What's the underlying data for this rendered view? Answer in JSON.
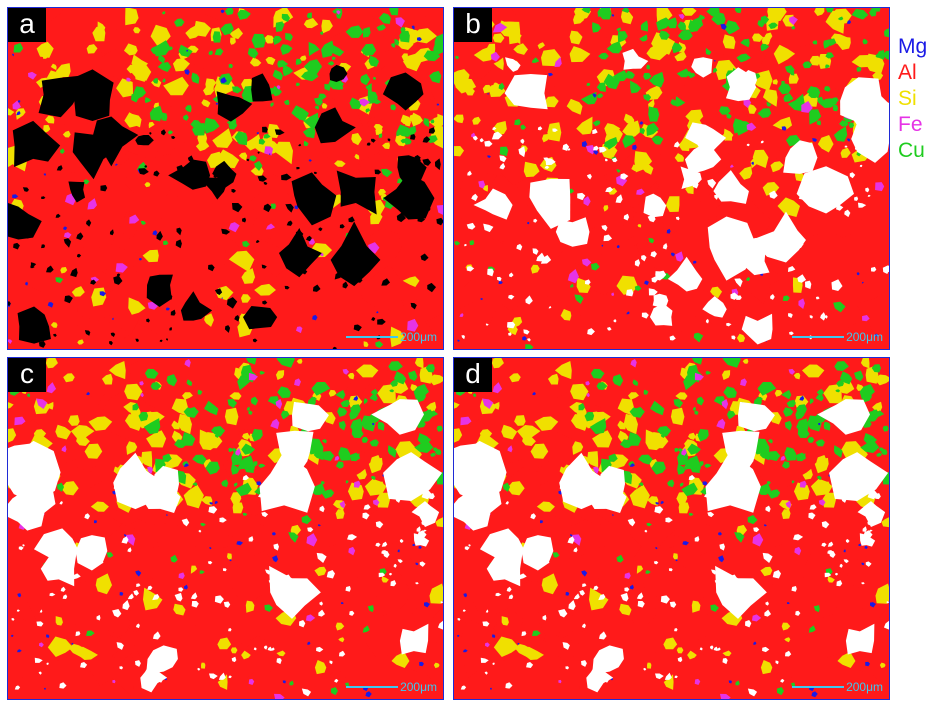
{
  "panels": [
    {
      "id": "a",
      "label": "a",
      "void_color": "#000000"
    },
    {
      "id": "b",
      "label": "b",
      "void_color": "#ffffff"
    },
    {
      "id": "c",
      "label": "c",
      "void_color": "#ffffff"
    },
    {
      "id": "d",
      "label": "d",
      "void_color": "#ffffff"
    }
  ],
  "scale_bar": {
    "text": "200μm",
    "color": "#3cc8f0"
  },
  "legend": [
    {
      "element": "Mg",
      "color": "#1a1ae6"
    },
    {
      "element": "Al",
      "color": "#ff1a1a"
    },
    {
      "element": "Si",
      "color": "#f0e000"
    },
    {
      "element": "Fe",
      "color": "#e633e6"
    },
    {
      "element": "Cu",
      "color": "#1fcc1f"
    }
  ],
  "frame_color": "#1f2bd6"
}
